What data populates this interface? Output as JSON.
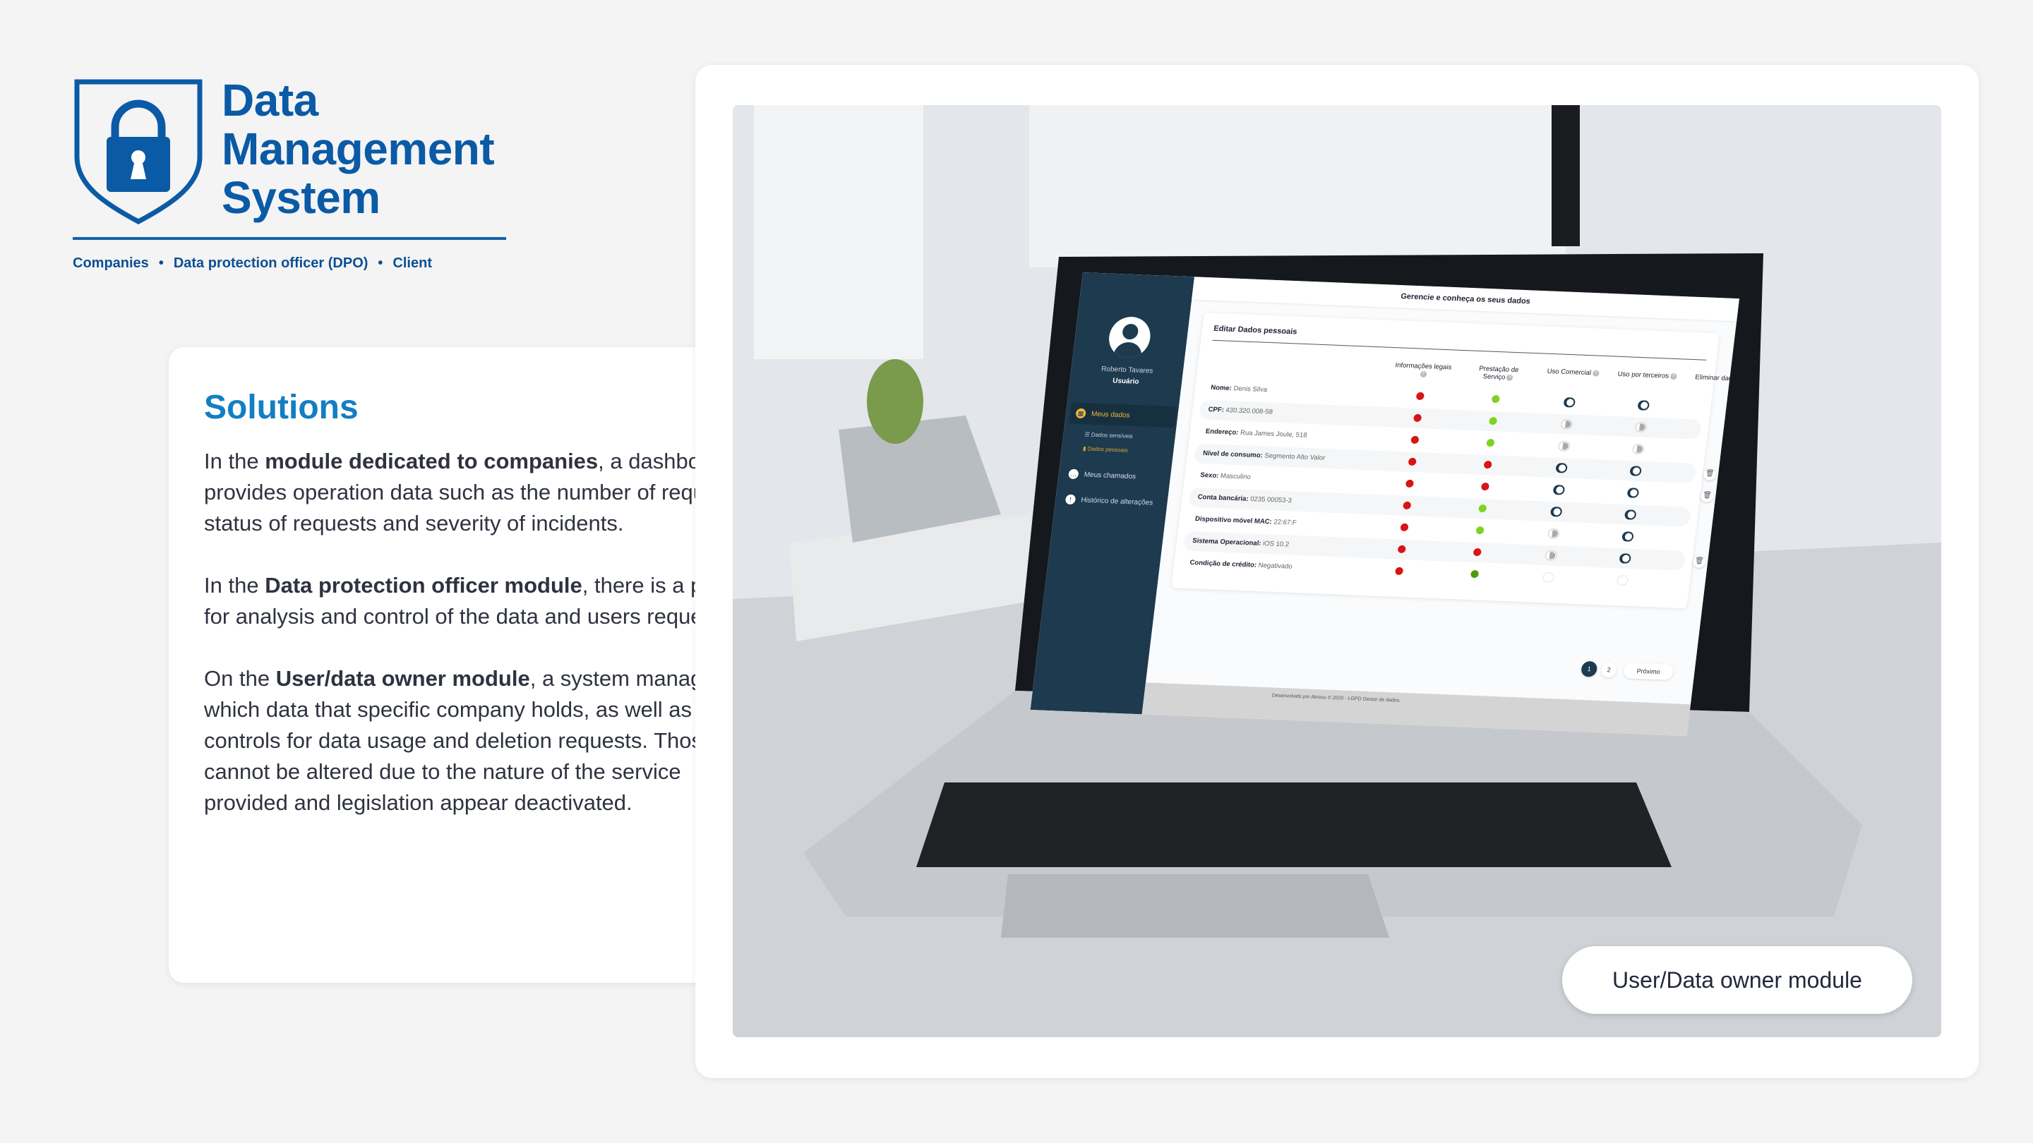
{
  "brand": {
    "title_lines": [
      "Data",
      "Management",
      "System"
    ],
    "modules": [
      "Companies",
      "Data protection officer (DPO)",
      "Client"
    ],
    "color": "#0b5aa5",
    "logo_icon": "shield-lock-icon"
  },
  "solutions": {
    "title": "Solutions",
    "p1": {
      "a": "In the ",
      "b": "module dedicated to companies",
      "c": ", a dashboard provides operation data such as the number of requests, status of requests and severity of incidents."
    },
    "p2": {
      "a": "In the ",
      "b": "Data protection officer module",
      "c": ", there is a panel for analysis and control of the data and users requests."
    },
    "p3": {
      "a": "On the ",
      "b": "User/data owner module",
      "c": ", a system manages which data that specific company holds, as well as controls for data usage and deletion requests. Those that cannot be altered due to the nature of the service provided and legislation appear deactivated."
    }
  },
  "screen": {
    "header": "Gerencie e conheça os seus dados",
    "user": {
      "name": "Roberto Tavares",
      "role": "Usuário"
    },
    "nav": [
      {
        "label": "Meus dados",
        "icon": "grid-icon",
        "active": true
      },
      {
        "label": "Meus chamados",
        "icon": "chat-icon"
      },
      {
        "label": "Histórico de alterações",
        "icon": "alert-icon"
      }
    ],
    "subnav": [
      "Dados sensíveis",
      "Dados pessoais"
    ],
    "panel_title": "Editar Dados pessoais",
    "columns": [
      "Informações legais",
      "Prestação de Serviço",
      "Uso Comercial",
      "Uso por terceiros",
      "Eliminar dados"
    ],
    "help_glyph": "?",
    "rows": [
      {
        "label": "Nome:",
        "value": "Denis Silva",
        "legal": "red",
        "service": "green",
        "comercial": "on",
        "terceiros": "on",
        "delete": false
      },
      {
        "label": "CPF:",
        "value": "430.320.008-58",
        "legal": "red",
        "service": "green",
        "comercial": "off",
        "terceiros": "off",
        "delete": false
      },
      {
        "label": "Endereço:",
        "value": "Rua James Joule, 518",
        "legal": "red",
        "service": "green",
        "comercial": "off",
        "terceiros": "off",
        "delete": false
      },
      {
        "label": "Nível de consumo:",
        "value": "Segmento Alto Valor",
        "legal": "red",
        "service": "red",
        "comercial": "on",
        "terceiros": "on",
        "delete": true
      },
      {
        "label": "Sexo:",
        "value": "Masculino",
        "legal": "red",
        "service": "red",
        "comercial": "on",
        "terceiros": "on",
        "delete": true
      },
      {
        "label": "Conta bancária:",
        "value": "0235 00053-3",
        "legal": "red",
        "service": "green",
        "comercial": "on",
        "terceiros": "on",
        "delete": false
      },
      {
        "label": "Dispositivo móvel MAC:",
        "value": "22:67:F",
        "legal": "red",
        "service": "green",
        "comercial": "off",
        "terceiros": "on",
        "delete": false
      },
      {
        "label": "Sistema Operacional:",
        "value": "iOS 10.2",
        "legal": "red",
        "service": "red",
        "comercial": "off",
        "terceiros": "on",
        "delete": true
      },
      {
        "label": "Condição de crédito:",
        "value": "Negativado",
        "legal": "red",
        "service": "darkgreen",
        "comercial": "disabled",
        "terceiros": "disabled",
        "delete": false
      }
    ],
    "status_colors": {
      "red": "#d81414",
      "green": "#7ed321",
      "darkgreen": "#4a9a10"
    },
    "pages": [
      "1",
      "2"
    ],
    "next_label": "Próximo",
    "footer": "Desenvolvido por Akross © 2020 - LGPD Gestor de dados."
  },
  "module_badge": "User/Data owner module"
}
